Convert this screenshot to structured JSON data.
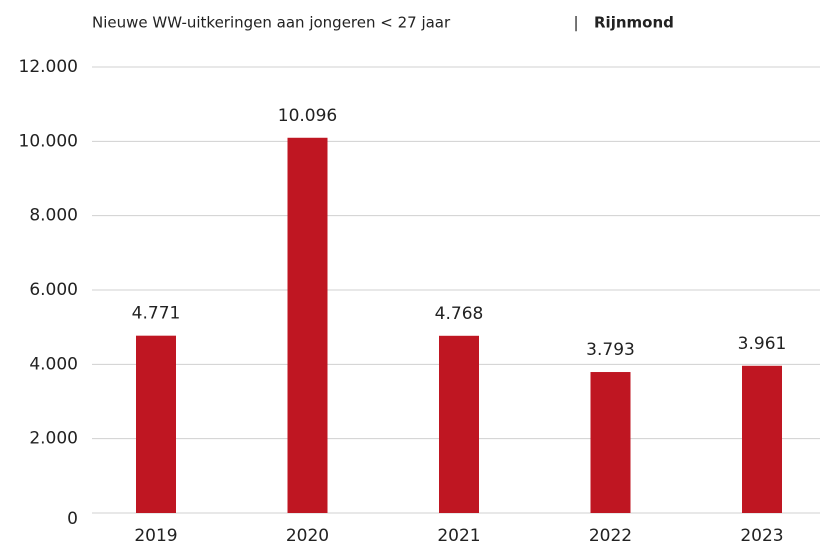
{
  "chart_data": {
    "type": "bar",
    "title": "Nieuwe WW-uitkeringen aan jongeren < 27 jaar",
    "title_separator": "|",
    "subtitle": "Rijnmond",
    "categories": [
      "2019",
      "2020",
      "2021",
      "2022",
      "2023"
    ],
    "values": [
      4771,
      10096,
      4768,
      3793,
      3961
    ],
    "value_labels": [
      "4.771",
      "10.096",
      "4.768",
      "3.793",
      "3.961"
    ],
    "color": "#bf1622",
    "ylim": [
      0,
      12000
    ],
    "yticks": [
      0,
      {
        "value": 2000,
        "label": "2.000"
      },
      {
        "value": 4000,
        "label": "4.000"
      },
      {
        "value": 6000,
        "label": "6.000"
      },
      {
        "value": 8000,
        "label": "8.000"
      },
      {
        "value": 10000,
        "label": "10.000"
      },
      {
        "value": 12000,
        "label": "12.000"
      }
    ],
    "grid": true
  }
}
